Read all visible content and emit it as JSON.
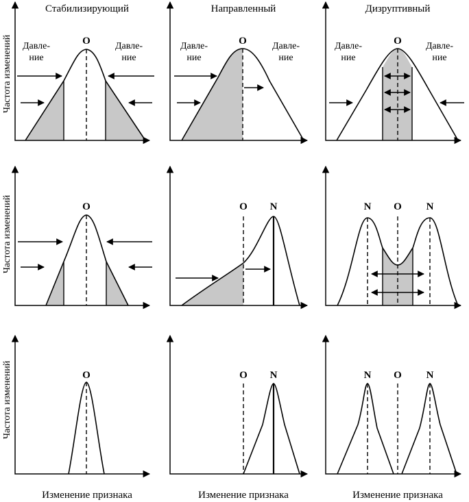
{
  "headers": {
    "col1": "Стабилизирующий",
    "col2": "Направленный",
    "col3": "Дизруптивный"
  },
  "y_label": "Частота изменений",
  "x_label": "Изменение признака",
  "labels": {
    "original": "O",
    "new": "N"
  },
  "pressure": {
    "line1": "Давле-",
    "line2": "ние"
  }
}
